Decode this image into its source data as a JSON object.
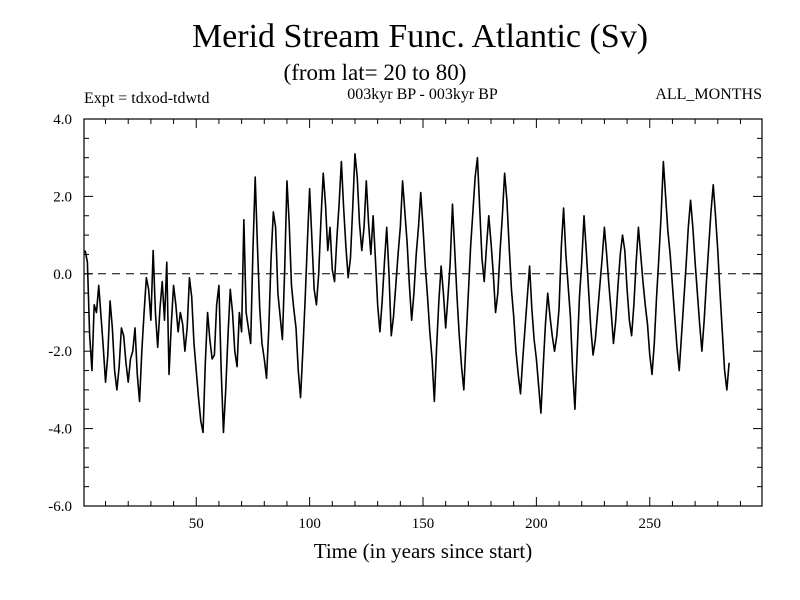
{
  "title": "Merid Stream Func. Atlantic (Sv)",
  "subtitle": "(from lat= 20 to 80)",
  "expt_label": "Expt = tdxod-tdwtd",
  "period_label": "003kyr BP - 003kyr BP",
  "months_label": "ALL_MONTHS",
  "chart_data": {
    "type": "line",
    "xlabel": "Time (in years since start)",
    "ylabel": "",
    "xlim": [
      0.5,
      299.5
    ],
    "ylim": [
      -6.0,
      4.0
    ],
    "x_ticks": [
      50,
      100,
      150,
      200,
      250
    ],
    "x_tick_labels": [
      "50",
      "100",
      "150",
      "200",
      "250"
    ],
    "y_ticks": [
      -6.0,
      -4.0,
      -2.0,
      0.0,
      2.0,
      4.0
    ],
    "y_tick_labels": [
      "-6.0",
      "-4.0",
      "-2.0",
      "0.0",
      "2.0",
      "4.0"
    ],
    "zero_line": "dashed",
    "grid": false,
    "line_color": "#000000",
    "series": [
      {
        "x_start": 1,
        "x_step": 1,
        "values": [
          0.6,
          0.3,
          -1.6,
          -2.5,
          -0.8,
          -1.0,
          -0.3,
          -1.1,
          -1.9,
          -2.8,
          -2.1,
          -0.7,
          -1.4,
          -2.5,
          -3.0,
          -2.4,
          -1.4,
          -1.6,
          -2.3,
          -2.8,
          -2.2,
          -2.0,
          -1.4,
          -2.6,
          -3.3,
          -2.0,
          -1.0,
          -0.1,
          -0.4,
          -1.2,
          0.6,
          -1.0,
          -1.9,
          -0.9,
          -0.2,
          -1.2,
          0.3,
          -2.6,
          -1.3,
          -0.3,
          -0.8,
          -1.5,
          -1.0,
          -1.3,
          -2.0,
          -1.4,
          -0.1,
          -0.6,
          -1.8,
          -2.5,
          -3.2,
          -3.8,
          -4.1,
          -2.3,
          -1.0,
          -1.7,
          -2.2,
          -2.1,
          -0.8,
          -0.3,
          -2.5,
          -4.1,
          -3.0,
          -1.6,
          -0.4,
          -1.0,
          -2.0,
          -2.4,
          -1.0,
          -1.5,
          1.4,
          -1.0,
          -1.4,
          -1.8,
          0.6,
          2.5,
          0.7,
          -0.9,
          -1.8,
          -2.2,
          -2.7,
          -1.4,
          0.4,
          1.6,
          1.2,
          -0.5,
          -1.1,
          -1.7,
          0.1,
          2.4,
          1.3,
          -0.3,
          -0.9,
          -1.4,
          -2.5,
          -3.2,
          -2.0,
          -0.7,
          0.8,
          2.2,
          0.9,
          -0.4,
          -0.8,
          0.0,
          1.4,
          2.6,
          1.8,
          0.6,
          1.2,
          0.1,
          -0.2,
          0.9,
          1.8,
          2.9,
          1.7,
          0.7,
          -0.1,
          0.4,
          1.7,
          3.1,
          2.5,
          1.3,
          0.6,
          1.2,
          2.4,
          1.3,
          0.5,
          1.5,
          0.4,
          -0.8,
          -1.5,
          -0.7,
          0.3,
          1.2,
          0.0,
          -1.6,
          -1.1,
          -0.3,
          0.5,
          1.2,
          2.4,
          1.6,
          0.8,
          -0.3,
          -1.2,
          -0.5,
          0.5,
          1.2,
          2.1,
          1.2,
          0.2,
          -0.6,
          -1.5,
          -2.2,
          -3.3,
          -1.9,
          -0.7,
          0.2,
          -0.5,
          -1.4,
          -0.6,
          0.3,
          1.8,
          0.6,
          -0.6,
          -1.6,
          -2.4,
          -3.0,
          -1.7,
          -0.5,
          0.7,
          1.6,
          2.5,
          3.0,
          1.7,
          0.4,
          -0.2,
          0.7,
          1.5,
          0.8,
          0.0,
          -1.0,
          -0.5,
          0.6,
          1.5,
          2.6,
          1.9,
          0.7,
          -0.4,
          -1.1,
          -2.0,
          -2.6,
          -3.1,
          -2.2,
          -1.4,
          -0.6,
          0.2,
          -0.9,
          -1.7,
          -2.2,
          -2.9,
          -3.6,
          -2.4,
          -1.3,
          -0.5,
          -1.1,
          -1.6,
          -2.0,
          -1.6,
          -0.9,
          0.7,
          1.7,
          0.5,
          -0.3,
          -1.1,
          -2.5,
          -3.5,
          -2.0,
          -0.6,
          0.3,
          1.5,
          0.6,
          -0.4,
          -1.4,
          -2.1,
          -1.7,
          -1.0,
          -0.3,
          0.4,
          1.2,
          0.5,
          -0.3,
          -1.0,
          -1.8,
          -1.2,
          -0.3,
          0.5,
          1.0,
          0.6,
          -0.4,
          -1.2,
          -1.6,
          -0.8,
          0.3,
          1.2,
          0.5,
          -0.2,
          -0.8,
          -1.3,
          -2.1,
          -2.6,
          -1.8,
          -0.6,
          0.4,
          1.5,
          2.9,
          2.0,
          1.1,
          0.5,
          -0.3,
          -1.1,
          -1.9,
          -2.5,
          -1.6,
          -0.7,
          0.2,
          1.2,
          1.9,
          1.2,
          0.3,
          -0.5,
          -1.3,
          -2.0,
          -1.2,
          -0.2,
          0.7,
          1.6,
          2.3,
          1.5,
          0.6,
          -0.5,
          -1.5,
          -2.5,
          -3.0,
          -2.3
        ]
      }
    ]
  }
}
